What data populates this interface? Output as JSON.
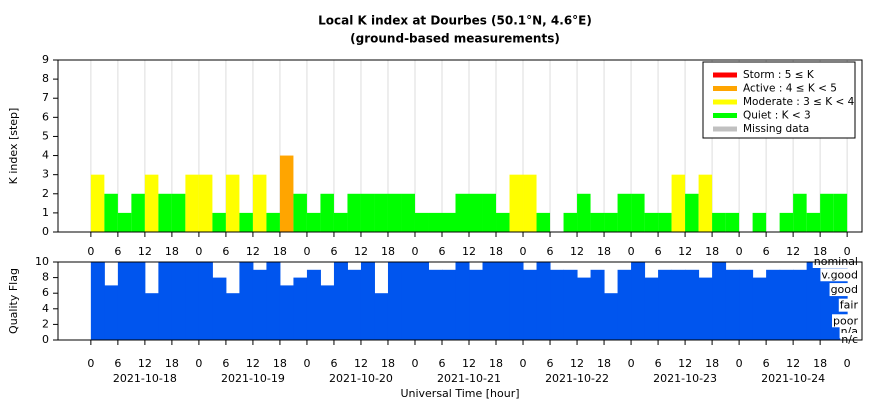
{
  "chart_data": [
    {
      "type": "bar",
      "title": "Local K index at Dourbes (50.1°N, 4.6°E)",
      "subtitle": "(ground-based measurements)",
      "ylabel": "K index [step]",
      "x": [
        0,
        3,
        6,
        9,
        12,
        15,
        18,
        21,
        24,
        27,
        30,
        33,
        36,
        39,
        42,
        45,
        48,
        51,
        54,
        57,
        60,
        63,
        66,
        69,
        72,
        75,
        78,
        81,
        84,
        87,
        90,
        93,
        96,
        99,
        102,
        105,
        108,
        111,
        114,
        117,
        120,
        123,
        126,
        129,
        132,
        135,
        138,
        141,
        144,
        147,
        150,
        153,
        156,
        159,
        162,
        165
      ],
      "values": [
        3,
        2,
        1,
        2,
        3,
        2,
        2,
        3,
        3,
        1,
        3,
        1,
        3,
        1,
        4,
        2,
        1,
        2,
        1,
        2,
        2,
        2,
        2,
        2,
        1,
        1,
        1,
        2,
        2,
        2,
        1,
        3,
        3,
        1,
        0,
        1,
        2,
        1,
        1,
        2,
        2,
        1,
        1,
        3,
        2,
        3,
        1,
        1,
        0,
        1,
        0,
        1,
        2,
        1,
        2,
        2
      ],
      "colors": [
        "#ffff00",
        "#00ff00",
        "#00ff00",
        "#00ff00",
        "#ffff00",
        "#00ff00",
        "#00ff00",
        "#ffff00",
        "#ffff00",
        "#00ff00",
        "#ffff00",
        "#00ff00",
        "#ffff00",
        "#00ff00",
        "#ffa500",
        "#00ff00",
        "#00ff00",
        "#00ff00",
        "#00ff00",
        "#00ff00",
        "#00ff00",
        "#00ff00",
        "#00ff00",
        "#00ff00",
        "#00ff00",
        "#00ff00",
        "#00ff00",
        "#00ff00",
        "#00ff00",
        "#00ff00",
        "#00ff00",
        "#ffff00",
        "#ffff00",
        "#00ff00",
        "#00ff00",
        "#00ff00",
        "#00ff00",
        "#00ff00",
        "#00ff00",
        "#00ff00",
        "#00ff00",
        "#00ff00",
        "#00ff00",
        "#ffff00",
        "#00ff00",
        "#ffff00",
        "#00ff00",
        "#00ff00",
        "#00ff00",
        "#00ff00",
        "#00ff00",
        "#00ff00",
        "#00ff00",
        "#00ff00",
        "#00ff00",
        "#00ff00"
      ],
      "xlim": [
        -7.3,
        171.3
      ],
      "ylim": [
        0,
        9
      ],
      "yticks": [
        0,
        1,
        2,
        3,
        4,
        5,
        6,
        7,
        8,
        9
      ],
      "xticks": [
        {
          "value": 0,
          "label": "0"
        },
        {
          "value": 6,
          "label": "6"
        },
        {
          "value": 12,
          "label": "12"
        },
        {
          "value": 18,
          "label": "18"
        },
        {
          "value": 24,
          "label": "0"
        },
        {
          "value": 30,
          "label": "6"
        },
        {
          "value": 36,
          "label": "12"
        },
        {
          "value": 42,
          "label": "18"
        },
        {
          "value": 48,
          "label": "0"
        },
        {
          "value": 54,
          "label": "6"
        },
        {
          "value": 60,
          "label": "12"
        },
        {
          "value": 66,
          "label": "18"
        },
        {
          "value": 72,
          "label": "0"
        },
        {
          "value": 78,
          "label": "6"
        },
        {
          "value": 84,
          "label": "12"
        },
        {
          "value": 90,
          "label": "18"
        },
        {
          "value": 96,
          "label": "0"
        },
        {
          "value": 102,
          "label": "6"
        },
        {
          "value": 108,
          "label": "12"
        },
        {
          "value": 114,
          "label": "18"
        },
        {
          "value": 120,
          "label": "0"
        },
        {
          "value": 126,
          "label": "6"
        },
        {
          "value": 132,
          "label": "12"
        },
        {
          "value": 138,
          "label": "18"
        },
        {
          "value": 144,
          "label": "0"
        },
        {
          "value": 150,
          "label": "6"
        },
        {
          "value": 156,
          "label": "12"
        },
        {
          "value": 162,
          "label": "18"
        },
        {
          "value": 168,
          "label": "0"
        }
      ],
      "grid": true,
      "legend_position": "upper right",
      "legend": [
        {
          "name": "Storm : 5 ≤ K",
          "color": "#ff0000"
        },
        {
          "name": "Active : 4 ≤ K < 5",
          "color": "#ffa500"
        },
        {
          "name": "Moderate : 3 ≤ K < 4",
          "color": "#ffff00"
        },
        {
          "name": "Quiet : K < 3",
          "color": "#00ff00"
        },
        {
          "name": "Missing data",
          "color": "#c0c0c0"
        }
      ]
    },
    {
      "type": "bar",
      "ylabel": "Quality Flag",
      "xlabel": "Universal Time [hour]",
      "color": "#0055ee",
      "values": [
        10,
        7,
        10,
        10,
        6,
        10,
        10,
        10,
        10,
        8,
        6,
        10,
        9,
        10,
        7,
        8,
        9,
        7,
        10,
        9,
        10,
        6,
        10,
        10,
        10,
        9,
        9,
        10,
        9,
        10,
        10,
        10,
        9,
        10,
        9,
        9,
        8,
        9,
        6,
        9,
        10,
        8,
        9,
        9,
        9,
        8,
        10,
        9,
        9,
        8,
        9,
        9,
        9,
        10,
        10,
        10
      ],
      "ylim": [
        0,
        10
      ],
      "yticks": [
        0,
        2,
        4,
        6,
        8,
        10
      ],
      "flag_labels": [
        {
          "value": 10,
          "label": "nominal"
        },
        {
          "value": 8.3,
          "label": "v.good"
        },
        {
          "value": 6.4,
          "label": "good"
        },
        {
          "value": 4.4,
          "label": "fair"
        },
        {
          "value": 2.4,
          "label": "poor"
        },
        {
          "value": 1,
          "label": "n/a"
        },
        {
          "value": 0,
          "label": "n/c"
        }
      ],
      "date_labels": [
        {
          "value": 12,
          "label": "2021-10-18"
        },
        {
          "value": 36,
          "label": "2021-10-19"
        },
        {
          "value": 60,
          "label": "2021-10-20"
        },
        {
          "value": 84,
          "label": "2021-10-21"
        },
        {
          "value": 108,
          "label": "2021-10-22"
        },
        {
          "value": 132,
          "label": "2021-10-23"
        },
        {
          "value": 156,
          "label": "2021-10-24"
        }
      ]
    }
  ]
}
